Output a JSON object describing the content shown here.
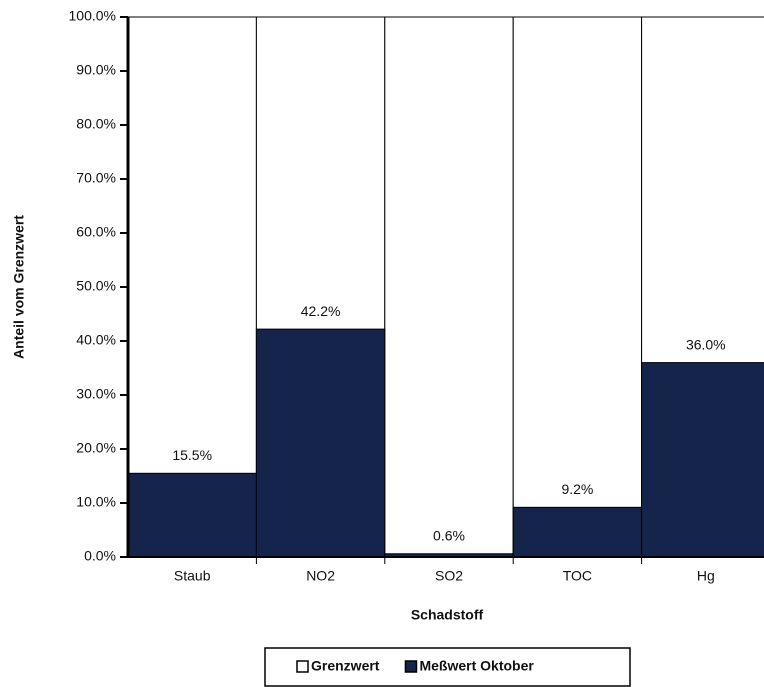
{
  "chart_data": {
    "type": "bar",
    "categories": [
      "Staub",
      "NO2",
      "SO2",
      "TOC",
      "Hg"
    ],
    "series": [
      {
        "name": "Grenzwert",
        "color": "#ffffff",
        "values": [
          100,
          100,
          100,
          100,
          100
        ]
      },
      {
        "name": "Meßwert Oktober",
        "color": "#14244a",
        "values": [
          15.5,
          42.2,
          0.6,
          9.2,
          36.0
        ],
        "value_labels": [
          "15.5%",
          "42.2%",
          "0.6%",
          "9.2%",
          "36.0%"
        ]
      }
    ],
    "xlabel": "Schadstoff",
    "ylabel": "Anteil vom Grenzwert",
    "ylim": [
      0,
      100
    ],
    "yticks": [
      {
        "value": 0,
        "label": "0.0%"
      },
      {
        "value": 10,
        "label": "10.0%"
      },
      {
        "value": 20,
        "label": "20.0%"
      },
      {
        "value": 30,
        "label": "30.0%"
      },
      {
        "value": 40,
        "label": "40.0%"
      },
      {
        "value": 50,
        "label": "50.0%"
      },
      {
        "value": 60,
        "label": "60.0%"
      },
      {
        "value": 70,
        "label": "70.0%"
      },
      {
        "value": 80,
        "label": "80.0%"
      },
      {
        "value": 90,
        "label": "90.0%"
      },
      {
        "value": 100,
        "label": "100.0%"
      }
    ],
    "legend": "bottom"
  }
}
